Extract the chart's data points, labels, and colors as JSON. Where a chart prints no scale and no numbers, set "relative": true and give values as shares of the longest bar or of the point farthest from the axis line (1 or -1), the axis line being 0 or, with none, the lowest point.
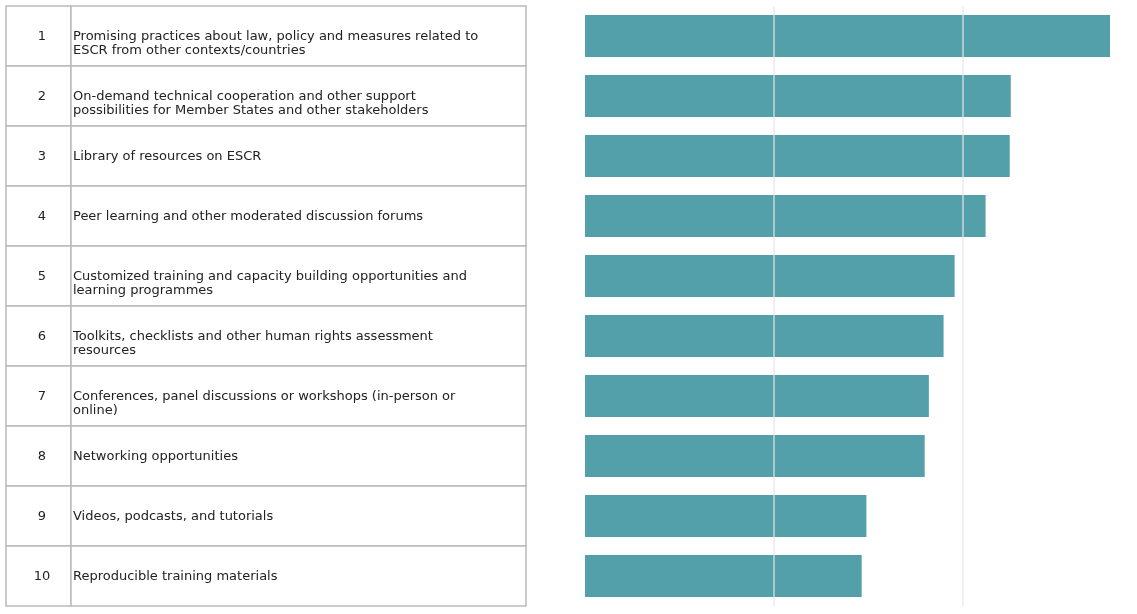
{
  "chart_data": {
    "type": "bar",
    "orientation": "horizontal",
    "relative": true,
    "ref_lines": [
      {
        "axis": "x",
        "value": 0.36,
        "color": "#e6e6e6"
      },
      {
        "axis": "x",
        "value": 0.72,
        "color": "#e6e6e6"
      }
    ],
    "color": "#53a0ab",
    "categories": [
      "Promising practices about law, policy and measures related to ESCR from other contexts/countries",
      "On-demand technical cooperation and other support possibilities for Member States and other stakeholders",
      "Library of resources on ESCR",
      "Peer learning and other moderated discussion forums",
      "Customized training and capacity building opportunities and learning programmes",
      "Toolkits, checklists and other human rights assessment resources",
      "Conferences, panel discussions or workshops (in-person or online)",
      "Networking opportunities",
      "Videos, podcasts, and tutorials",
      "Reproducible training materials"
    ],
    "annotations": [
      "1",
      "2",
      "3",
      "4",
      "5",
      "6",
      "7",
      "8",
      "9",
      "10"
    ],
    "values": [
      1.0,
      0.811,
      0.809,
      0.763,
      0.704,
      0.683,
      0.655,
      0.647,
      0.536,
      0.527
    ]
  }
}
